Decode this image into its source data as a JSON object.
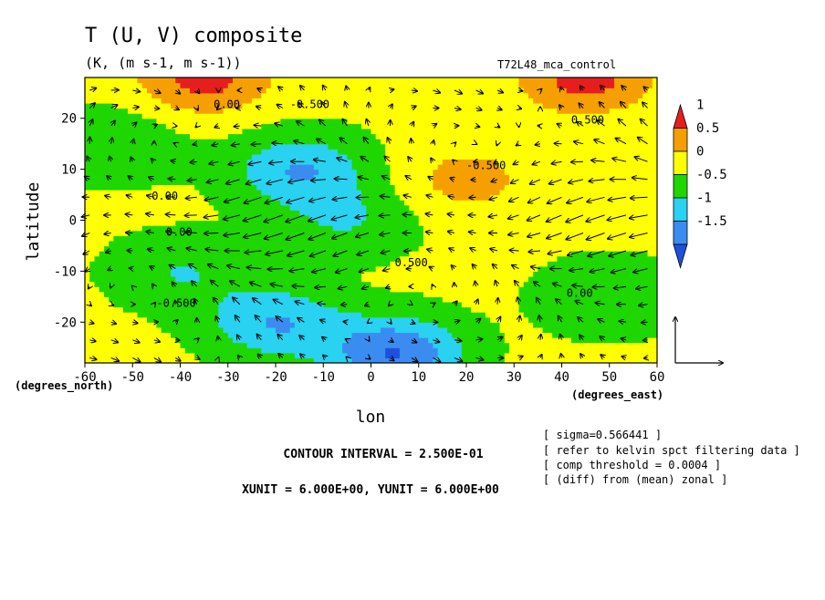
{
  "chart_data": {
    "type": "heatmap",
    "title": "T (U, V) composite",
    "subtitle": "(K, (m s-1, m s-1))",
    "run_label": "T72L48_mca_control",
    "xlabel": "lon",
    "ylabel": "latitude",
    "x_unit_label": "(degrees_east)",
    "y_unit_label": "(degrees_north)",
    "xlim": [
      -60,
      60
    ],
    "ylim": [
      -28,
      28
    ],
    "x_ticks": [
      -60,
      -50,
      -40,
      -30,
      -20,
      -10,
      0,
      10,
      20,
      30,
      40,
      50,
      60
    ],
    "y_ticks": [
      -20,
      -10,
      0,
      10,
      20
    ],
    "colorbar": {
      "levels": [
        -1.75,
        -1.5,
        -1.25,
        -1,
        -0.75,
        -0.5,
        -0.25,
        0,
        0.25,
        0.5,
        0.75,
        1,
        1.25
      ],
      "labels": [
        "1",
        "0.5",
        "0",
        "-0.5",
        "-1",
        "-1.5"
      ],
      "colors": [
        "#1e50dc",
        "#3a8cf0",
        "#28d2f0",
        "#1ed700",
        "#ffff00",
        "#f5a000",
        "#e61e1e"
      ]
    },
    "contour_labels": [
      "0.00",
      "-0.500",
      "0.00",
      "0.00",
      "-0.500",
      "-0.500",
      "0.00",
      "0.500",
      "0.500"
    ],
    "contour_interval": "CONTOUR INTERVAL = 2.500E-01",
    "vector_units": "XUNIT = 6.000E+00, YUNIT = 6.000E+00",
    "notes": [
      "[ sigma=0.566441 ]",
      "[ refer to kelvin spct filtering data ]",
      "[ comp threshold = 0.0004 ]",
      "[ (diff) from (mean) zonal ]"
    ],
    "field_pattern": [
      {
        "lon": -35,
        "lat": 28,
        "value": 1.1
      },
      {
        "lon": 45,
        "lat": 28,
        "value": 1.1
      },
      {
        "lon": -15,
        "lat": 10,
        "value": -1.1
      },
      {
        "lon": 20,
        "lat": 8,
        "value": 0.6
      },
      {
        "lon": -20,
        "lat": -20,
        "value": -1.1
      },
      {
        "lon": 5,
        "lat": -26,
        "value": -1.6
      },
      {
        "lon": 50,
        "lat": -15,
        "value": -0.6
      },
      {
        "lon": -55,
        "lat": 15,
        "value": -0.6
      },
      {
        "lon": -40,
        "lat": -10,
        "value": -0.6
      },
      {
        "lon": -5,
        "lat": 0,
        "value": -0.6
      }
    ]
  }
}
